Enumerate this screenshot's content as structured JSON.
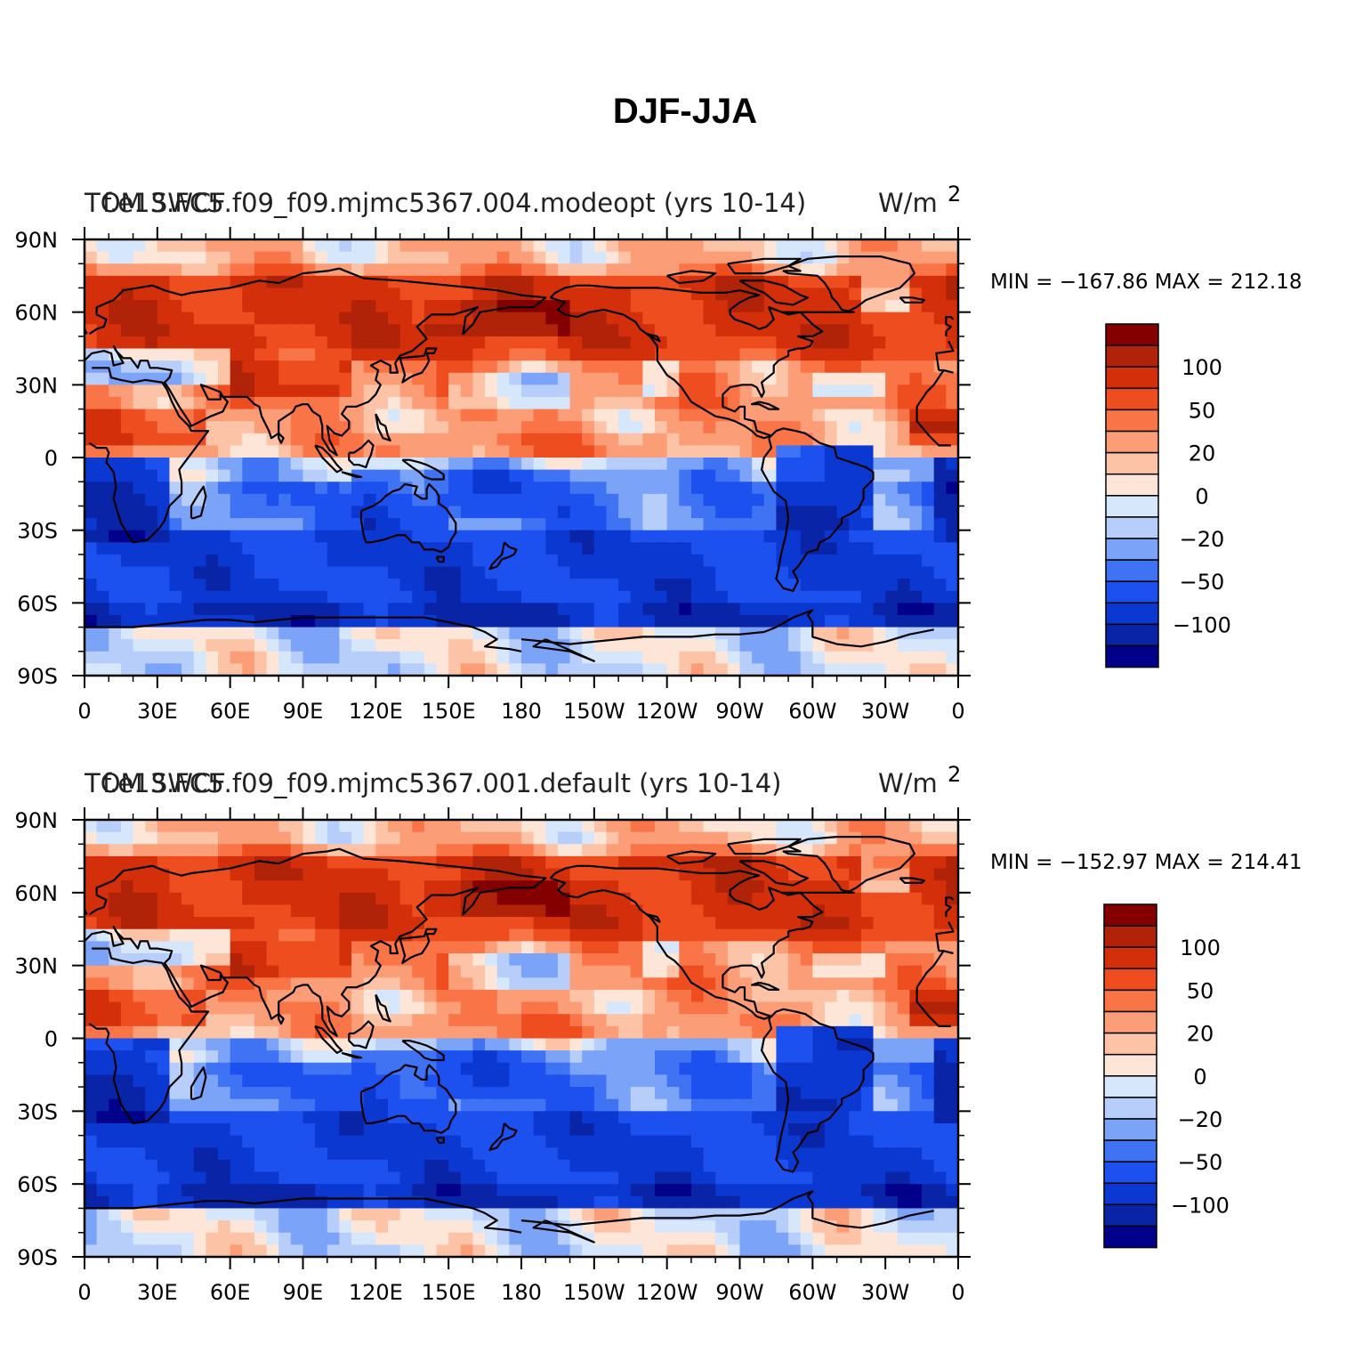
{
  "figure": {
    "title": "DJF-JJA"
  },
  "colors": {
    "levels": [
      "#00008a",
      "#0a24a8",
      "#0b38d0",
      "#1c50ef",
      "#3f73f3",
      "#7ba3f7",
      "#b7cefa",
      "#d6e7fc",
      "#fde6d8",
      "#fcc3a7",
      "#fb9d76",
      "#f97547",
      "#ee4e1f",
      "#d22f0a",
      "#b02309",
      "#840000"
    ]
  },
  "chart_data": [
    {
      "type": "heatmap",
      "variable_label": "TOM SWCF",
      "case_label": "f.e13.FC5.f09_f09.mjmc5367.004.modeopt (yrs 10-14)",
      "units": "W/m",
      "units_exp": "2",
      "stat_text": "MIN = −167.86  MAX = 212.18",
      "min": -167.86,
      "max": 212.18,
      "x_ticks": [
        "0",
        "30E",
        "60E",
        "90E",
        "120E",
        "150E",
        "180",
        "150W",
        "120W",
        "90W",
        "60W",
        "30W",
        "0"
      ],
      "y_ticks": [
        "90N",
        "60N",
        "30N",
        "0",
        "30S",
        "60S",
        "90S"
      ],
      "xlim": [
        0,
        360
      ],
      "ylim": [
        -90,
        90
      ],
      "colorbar_levels": [
        -150,
        -120,
        -100,
        -75,
        -50,
        -35,
        -20,
        -10,
        0,
        10,
        20,
        35,
        50,
        75,
        100,
        120,
        150
      ],
      "colorbar_labels": [
        "100",
        "50",
        "20",
        "0",
        "−20",
        "−50",
        "−100"
      ]
    },
    {
      "type": "heatmap",
      "variable_label": "TOM SWCF",
      "case_label": "f.e13.FC5.f09_f09.mjmc5367.001.default (yrs 10-14)",
      "units": "W/m",
      "units_exp": "2",
      "stat_text": "MIN = −152.97  MAX = 214.41",
      "min": -152.97,
      "max": 214.41,
      "x_ticks": [
        "0",
        "30E",
        "60E",
        "90E",
        "120E",
        "150E",
        "180",
        "150W",
        "120W",
        "90W",
        "60W",
        "30W",
        "0"
      ],
      "y_ticks": [
        "90N",
        "60N",
        "30N",
        "0",
        "30S",
        "60S",
        "90S"
      ],
      "xlim": [
        0,
        360
      ],
      "ylim": [
        -90,
        90
      ],
      "colorbar_levels": [
        -150,
        -120,
        -100,
        -75,
        -50,
        -35,
        -20,
        -10,
        0,
        10,
        20,
        35,
        50,
        75,
        100,
        120,
        150
      ],
      "colorbar_labels": [
        "100",
        "50",
        "20",
        "0",
        "−20",
        "−50",
        "−100"
      ]
    }
  ]
}
